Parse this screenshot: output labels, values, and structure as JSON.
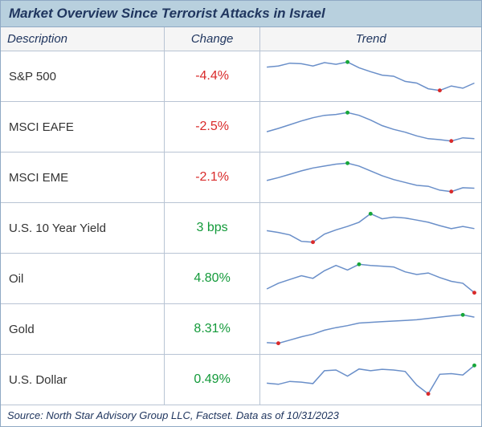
{
  "title": "Market Overview Since Terrorist Attacks in Israel",
  "columns": {
    "desc": "Description",
    "change": "Change",
    "trend": "Trend"
  },
  "source": "Source: North Star Advisory Group LLC, Factset. Data as of 10/31/2023",
  "style": {
    "table_border": "#8fa9c4",
    "cell_border": "#b8c4d4",
    "title_bg": "#b8d0de",
    "title_fg": "#20365f",
    "header_bg": "#f5f5f5",
    "neg_color": "#d92a2a",
    "pos_color": "#139a3a",
    "spark": {
      "line_color": "#6a8fc9",
      "line_width": 1.5,
      "max_marker": "#17a63a",
      "min_marker": "#d92a2a",
      "marker_radius": 2.4,
      "y_padding": 0.12
    }
  },
  "rows": [
    {
      "desc": "S&P 500",
      "change": "-4.4%",
      "sign": "neg",
      "series": [
        88,
        90,
        95,
        94,
        90,
        96,
        93,
        97,
        87,
        80,
        74,
        72,
        63,
        60,
        50,
        47,
        55,
        51,
        60
      ]
    },
    {
      "desc": "MSCI EAFE",
      "change": "-2.5%",
      "sign": "neg",
      "series": [
        55,
        62,
        70,
        78,
        85,
        90,
        92,
        96,
        90,
        80,
        68,
        60,
        54,
        46,
        40,
        38,
        35,
        42,
        40
      ]
    },
    {
      "desc": "MSCI EME",
      "change": "-2.1%",
      "sign": "neg",
      "series": [
        60,
        66,
        73,
        80,
        86,
        90,
        94,
        96,
        90,
        80,
        70,
        62,
        56,
        50,
        48,
        40,
        37,
        45,
        44
      ]
    },
    {
      "desc": "U.S. 10 Year Yield",
      "change": "3 bps",
      "sign": "pos",
      "series": [
        50,
        46,
        40,
        25,
        23,
        42,
        52,
        60,
        70,
        90,
        78,
        82,
        80,
        75,
        70,
        62,
        55,
        60,
        55
      ]
    },
    {
      "desc": "Oil",
      "change": "4.80%",
      "sign": "pos",
      "series": [
        30,
        45,
        55,
        65,
        58,
        78,
        92,
        80,
        95,
        92,
        90,
        88,
        75,
        68,
        72,
        60,
        50,
        45,
        20
      ]
    },
    {
      "desc": "Gold",
      "change": "8.31%",
      "sign": "pos",
      "series": [
        10,
        8,
        18,
        28,
        36,
        48,
        56,
        62,
        70,
        72,
        74,
        76,
        78,
        80,
        84,
        88,
        92,
        95,
        88
      ]
    },
    {
      "desc": "U.S. Dollar",
      "change": "0.49%",
      "sign": "pos",
      "series": [
        45,
        42,
        50,
        48,
        44,
        80,
        82,
        65,
        85,
        80,
        84,
        82,
        78,
        40,
        15,
        70,
        72,
        68,
        95
      ]
    }
  ]
}
